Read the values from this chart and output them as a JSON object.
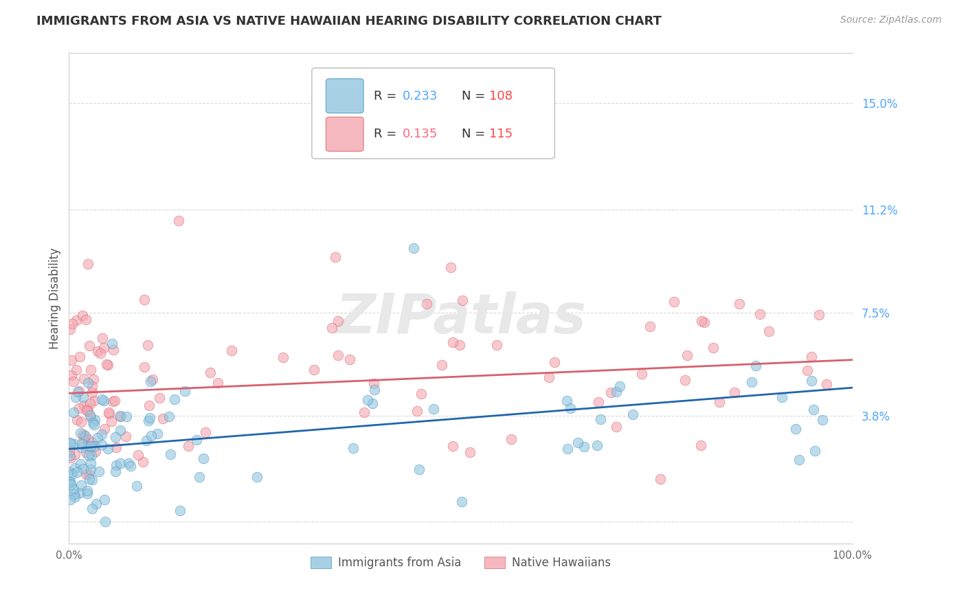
{
  "title": "IMMIGRANTS FROM ASIA VS NATIVE HAWAIIAN HEARING DISABILITY CORRELATION CHART",
  "source": "Source: ZipAtlas.com",
  "ylabel": "Hearing Disability",
  "yticks": [
    0.0,
    0.038,
    0.075,
    0.112,
    0.15
  ],
  "ytick_labels": [
    "",
    "3.8%",
    "7.5%",
    "11.2%",
    "15.0%"
  ],
  "xlim": [
    0.0,
    1.0
  ],
  "ylim": [
    -0.008,
    0.168
  ],
  "color_blue": "#92c5de",
  "color_pink": "#f4a6b0",
  "color_blue_edge": "#4393c3",
  "color_pink_edge": "#d6606d",
  "color_blue_line": "#2166ac",
  "color_pink_line": "#d6606d",
  "color_grid": "#d9d9d9",
  "color_title": "#333333",
  "color_source": "#999999",
  "color_legend_text_blue": "#4da6ff",
  "color_legend_text_pink": "#ff6680",
  "color_legend_text_n_blue": "#ff4444",
  "color_legend_text_n_pink": "#ff4444",
  "label1": "Immigrants from Asia",
  "label2": "Native Hawaiians",
  "blue_line_start": 0.026,
  "blue_line_end": 0.048,
  "pink_line_start": 0.046,
  "pink_line_end": 0.058,
  "seed_blue": 12,
  "seed_pink": 7
}
